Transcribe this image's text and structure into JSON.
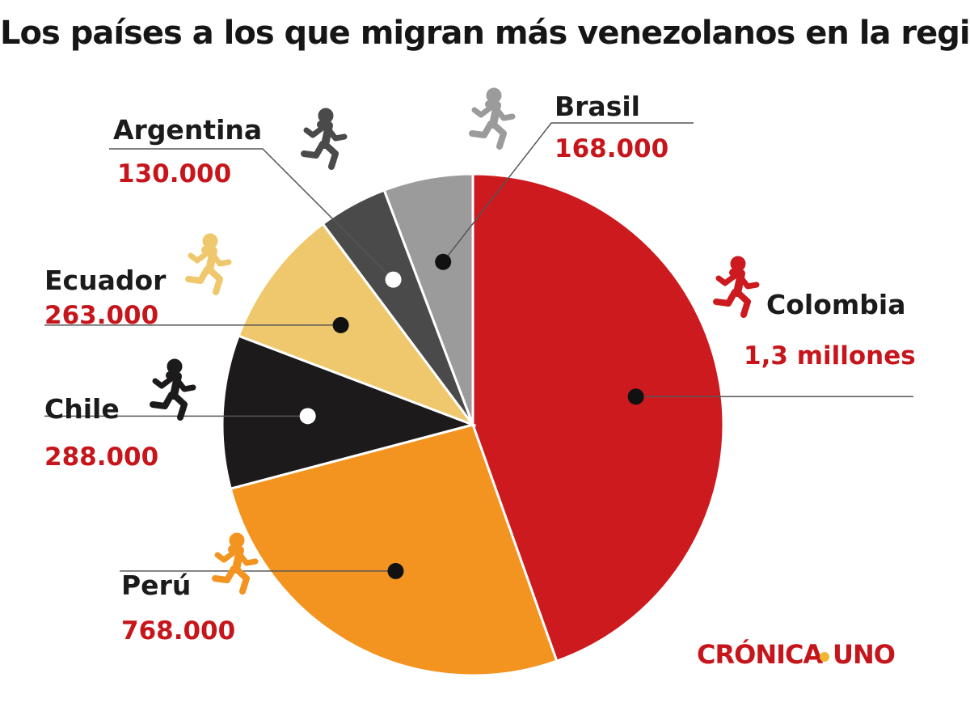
{
  "chart_data": {
    "type": "pie",
    "title": "Los países a los que migran más venezolanos  en la región",
    "series": [
      {
        "slices": [
          {
            "label": "Colombia",
            "value_label": "1,3 millones",
            "value": 1300000,
            "color": "#cc1a1f"
          },
          {
            "label": "Perú",
            "value_label": "768.000",
            "value": 768000,
            "color": "#f39421"
          },
          {
            "label": "Chile",
            "value_label": "288.000",
            "value": 288000,
            "color": "#1c1a1b"
          },
          {
            "label": "Ecuador",
            "value_label": "263.000",
            "value": 263000,
            "color": "#efc86e"
          },
          {
            "label": "Argentina",
            "value_label": "130.000",
            "value": 130000,
            "color": "#4a4a4a"
          },
          {
            "label": "Brasil",
            "value_label": "168.000",
            "value": 168000,
            "color": "#9b9b9b"
          }
        ]
      }
    ],
    "start": "top",
    "direction": "clockwise",
    "legend": "none"
  },
  "brand": {
    "left": "CRÓNICA",
    "right": "UNO",
    "icon": "dot-separator"
  },
  "icons": {
    "slice_marker": "running-person-icon"
  }
}
